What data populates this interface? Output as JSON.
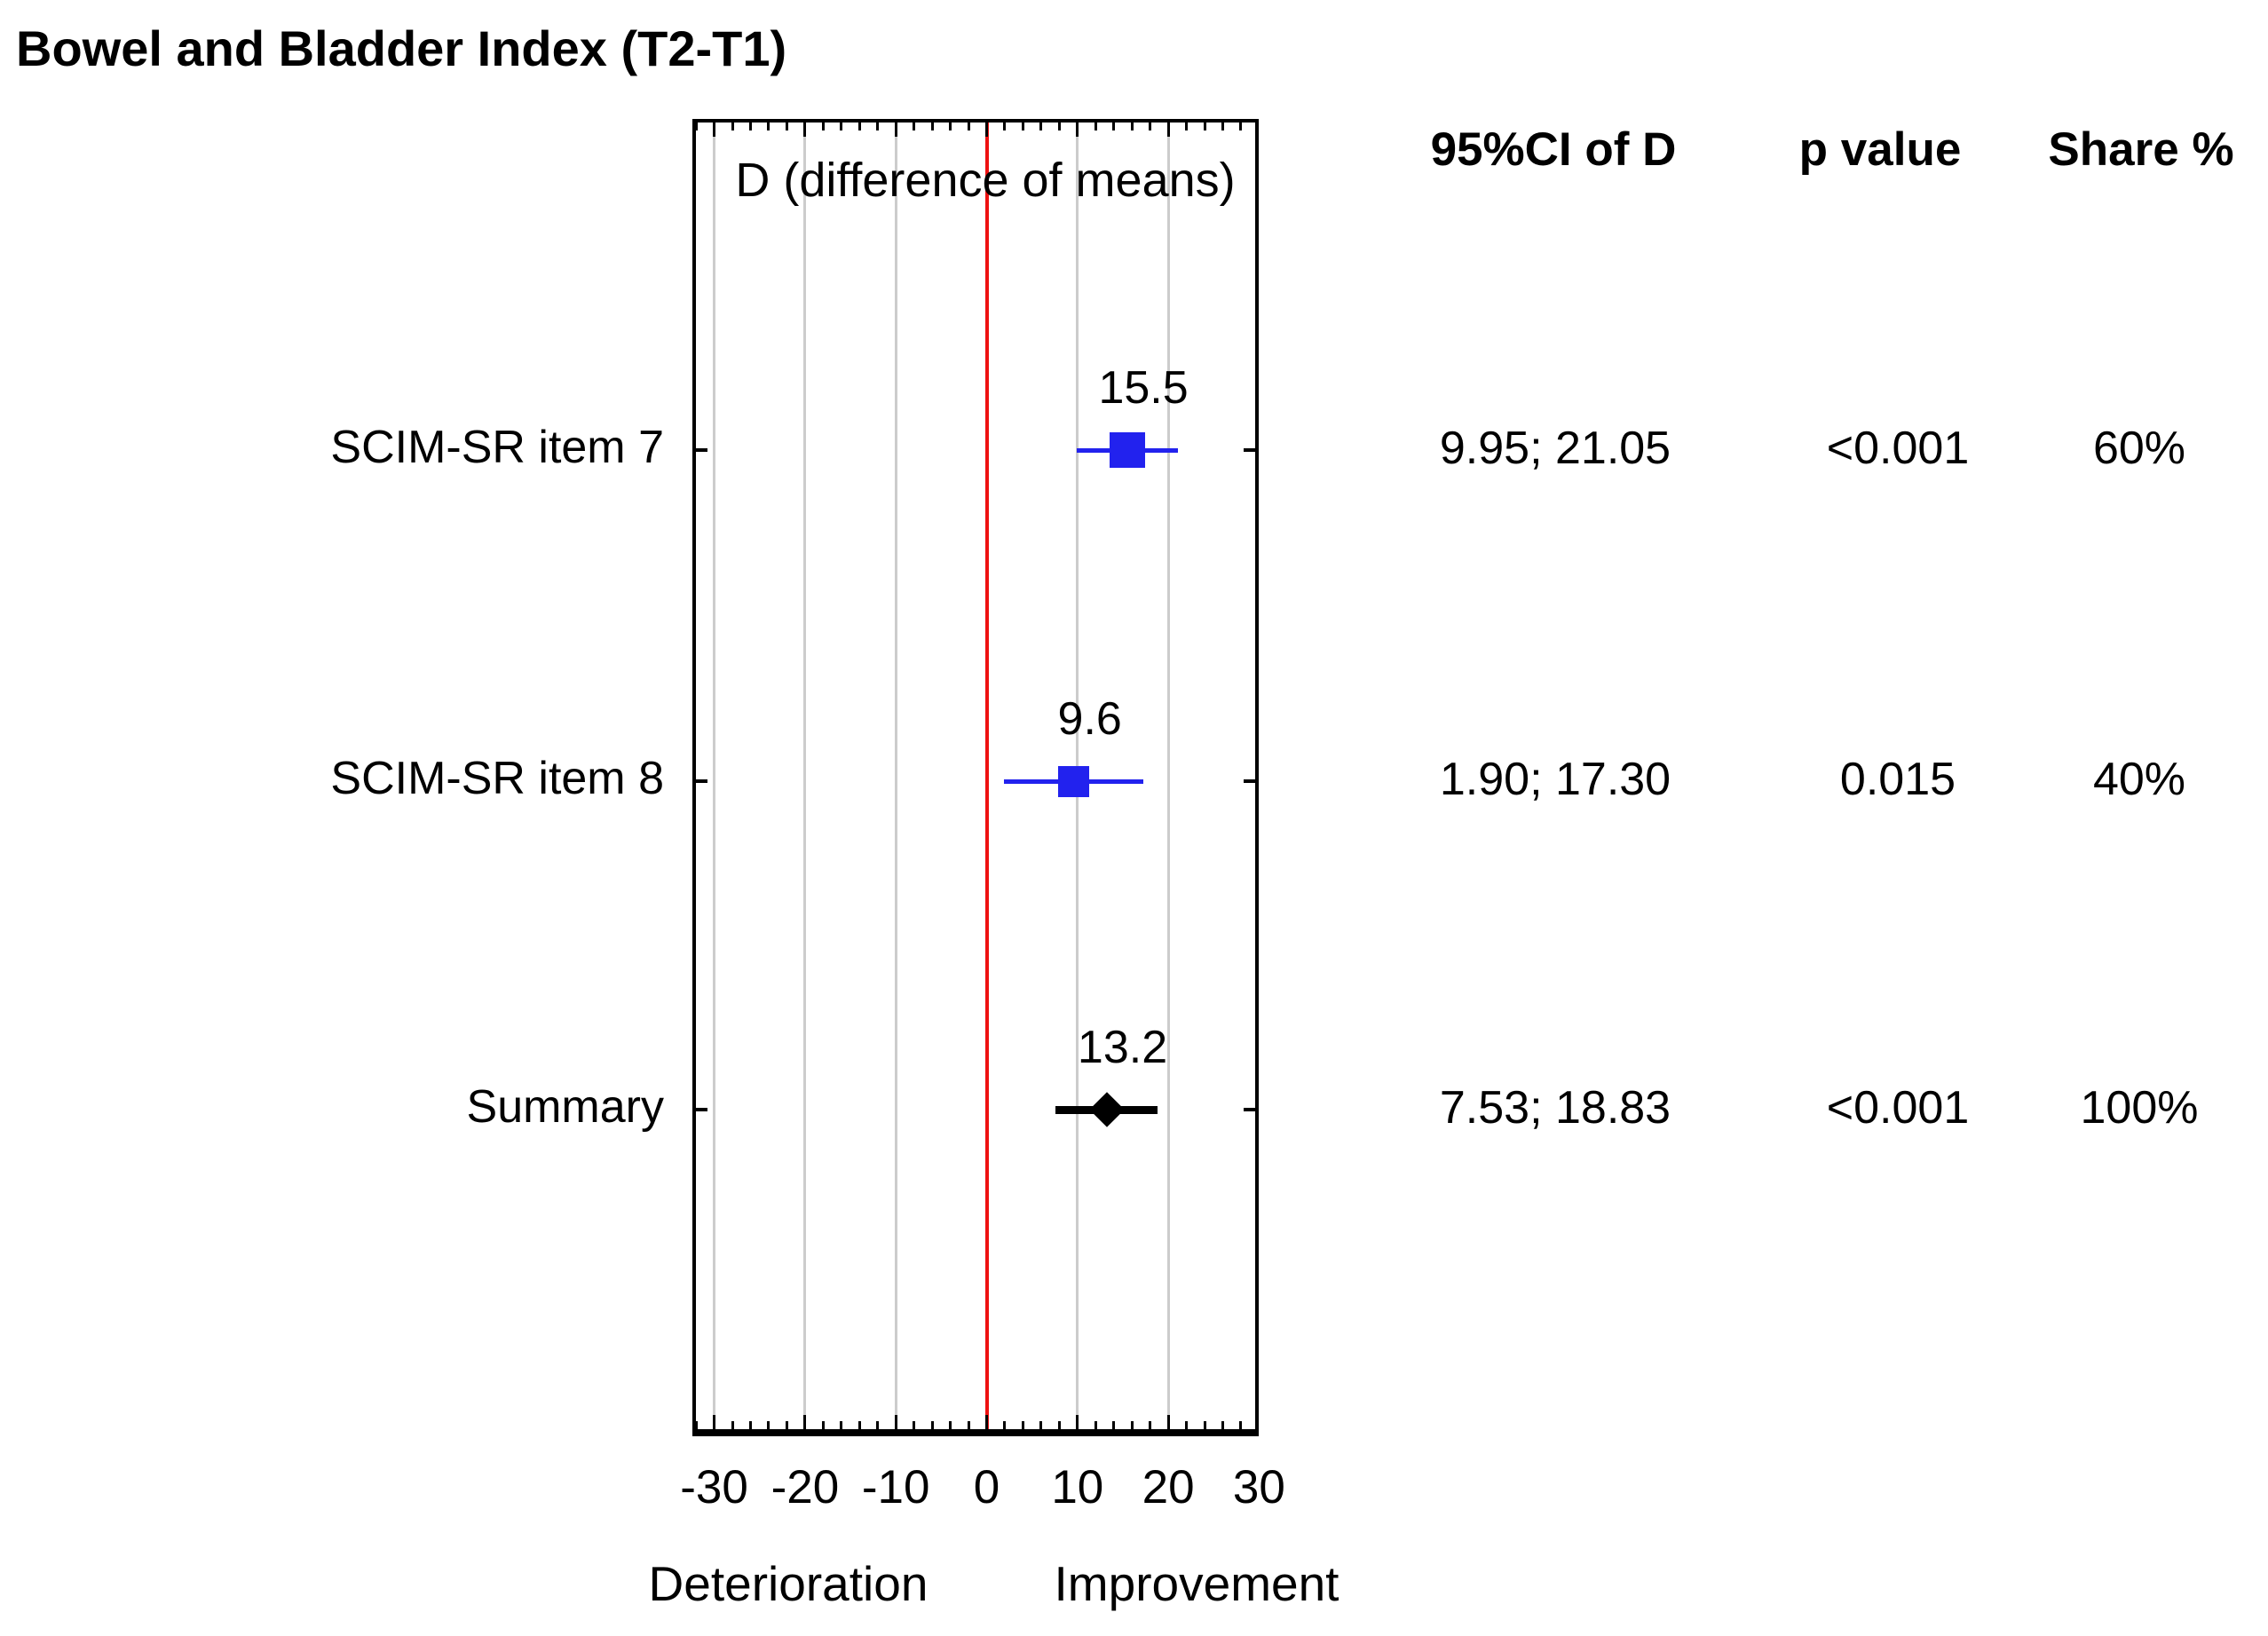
{
  "chart_data": {
    "type": "forest",
    "title": "Bowel and Bladder Index (T2-T1)",
    "axis_title": "D (difference of means)",
    "columns": {
      "ci": "95%CI of D",
      "p": "p value",
      "share": "Share %"
    },
    "x_ticks": [
      -30,
      -20,
      -10,
      0,
      10,
      20,
      30
    ],
    "x_tick_labels": [
      "-30",
      "-20",
      "-10",
      "0",
      "10",
      "20",
      "30"
    ],
    "xlim_box": [
      -32.4,
      30
    ],
    "minor_tick_step": 2,
    "xlabel_left": "Deterioration",
    "xlabel_right": "Improvement",
    "zero_line_value": 0,
    "colors": {
      "marker_blue": "#2222ee",
      "summary_black": "#000000",
      "zero_line_red": "#ee1111",
      "gridline_gray": "#cccccc"
    },
    "rows": [
      {
        "label": "SCIM-SR item 7",
        "d": 15.5,
        "d_label": "15.5",
        "ci_low": 9.95,
        "ci_high": 21.05,
        "ci_text": "9.95; 21.05",
        "p_value": "<0.001",
        "share": "60%",
        "marker": "square",
        "marker_size": 40
      },
      {
        "label": "SCIM-SR item 8",
        "d": 9.6,
        "d_label": "9.6",
        "ci_low": 1.9,
        "ci_high": 17.3,
        "ci_text": "1.90; 17.30",
        "p_value": "0.015",
        "share": "40%",
        "marker": "square",
        "marker_size": 35
      },
      {
        "label": "Summary",
        "d": 13.2,
        "d_label": "13.2",
        "ci_low": 7.53,
        "ci_high": 18.83,
        "ci_text": "7.53; 18.83",
        "p_value": "<0.001",
        "share": "100%",
        "marker": "diamond",
        "marker_size": 28
      }
    ]
  }
}
